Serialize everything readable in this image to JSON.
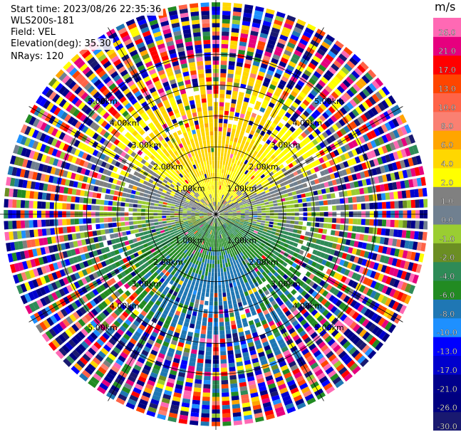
{
  "header": {
    "start_time": "Start time: 2023/08/26 22:35:36",
    "instrument": "WLS200s-181",
    "field": "Field: VEL",
    "elevation": "Elevation(deg): 35.30",
    "nrays": "NRays: 120"
  },
  "colorbar": {
    "unit": "m/s",
    "colors": [
      "#191970",
      "#000080",
      "#00008b",
      "#0000cd",
      "#0000ff",
      "#1e90ff",
      "#1f77b4",
      "#228b22",
      "#2e8b57",
      "#6b8e23",
      "#9acd32",
      "#708090",
      "#808080",
      "#ffff00",
      "#ffd700",
      "#ffa500",
      "#fa8072",
      "#ff6347",
      "#ff4500",
      "#ff0000",
      "#e6007e",
      "#ff69b4"
    ],
    "tick_labels": [
      "-30.0",
      "-26.0",
      "-21.0",
      "-17.0",
      "-13.0",
      "-10.0",
      "-8.0",
      "-6.0",
      "-4.0",
      "-2.0",
      "-1.0",
      "0.0",
      "1.0",
      "2.0",
      "4.0",
      "6.0",
      "8.0",
      "10.0",
      "13.0",
      "17.0",
      "21.0",
      "26.0"
    ]
  },
  "chart_data": {
    "type": "heatmap",
    "field": "VEL",
    "units": "m/s",
    "elevation_deg": 35.3,
    "nrays": 120,
    "range_ring_labels": [
      "1.00km",
      "2.00km",
      "3.00km",
      "4.00km",
      "5.00km"
    ],
    "value_range": [
      -30,
      30
    ],
    "pattern": {
      "near_range_north": "positive 2 to 8 m/s (yellow/orange)",
      "near_range_south": "negative -2 to -10 m/s (green/blue)",
      "far_range": "noisy, all colors"
    }
  }
}
